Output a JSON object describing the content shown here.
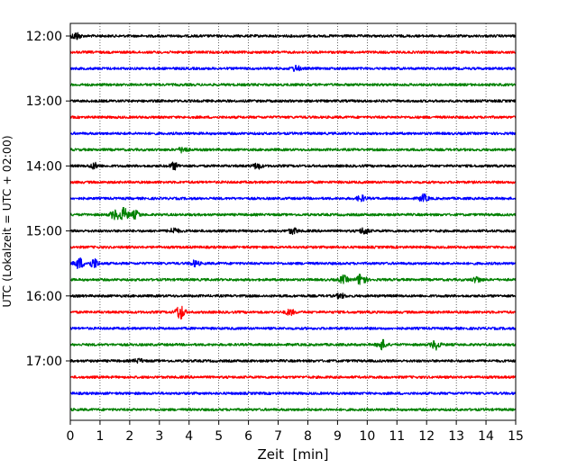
{
  "chart_data": {
    "type": "line",
    "title": "",
    "xlabel": "Zeit  [min]",
    "ylabel": "UTC (Lokalzeit = UTC + 02:00)",
    "xlim": [
      0,
      15
    ],
    "x_ticks": [
      0,
      1,
      2,
      3,
      4,
      5,
      6,
      7,
      8,
      9,
      10,
      11,
      12,
      13,
      14,
      15
    ],
    "x_tick_labels": [
      "0",
      "1",
      "2",
      "3",
      "4",
      "5",
      "6",
      "7",
      "8",
      "9",
      "10",
      "11",
      "12",
      "13",
      "14",
      "15"
    ],
    "y_tick_labels": [
      "12:00",
      "13:00",
      "14:00",
      "15:00",
      "16:00",
      "17:00"
    ],
    "y_ticks_minutes": [
      0,
      60,
      120,
      180,
      240,
      300
    ],
    "trace_interval_minutes": 15,
    "trace_count": 24,
    "trace_start_minutes": [
      0,
      15,
      30,
      45,
      60,
      75,
      90,
      105,
      120,
      135,
      150,
      165,
      180,
      195,
      210,
      225,
      240,
      255,
      270,
      285,
      300,
      315,
      330,
      345
    ],
    "color_cycle": [
      "#000000",
      "#ff0000",
      "#0000ff",
      "#008000"
    ],
    "grid": "vertical-dotted",
    "events": [
      {
        "trace": 0,
        "t": 0.2,
        "amp": 0.4
      },
      {
        "trace": 2,
        "t": 7.6,
        "amp": 0.3
      },
      {
        "trace": 7,
        "t": 3.8,
        "amp": 0.3
      },
      {
        "trace": 8,
        "t": 3.5,
        "amp": 0.35
      },
      {
        "trace": 8,
        "t": 6.3,
        "amp": 0.3
      },
      {
        "trace": 8,
        "t": 0.8,
        "amp": 0.3
      },
      {
        "trace": 10,
        "t": 9.8,
        "amp": 0.3
      },
      {
        "trace": 10,
        "t": 11.9,
        "amp": 0.4
      },
      {
        "trace": 11,
        "t": 1.8,
        "amp": 0.7
      },
      {
        "trace": 11,
        "t": 1.5,
        "amp": 0.5
      },
      {
        "trace": 11,
        "t": 2.2,
        "amp": 0.4
      },
      {
        "trace": 12,
        "t": 3.5,
        "amp": 0.3
      },
      {
        "trace": 12,
        "t": 7.5,
        "amp": 0.3
      },
      {
        "trace": 12,
        "t": 9.9,
        "amp": 0.35
      },
      {
        "trace": 14,
        "t": 0.3,
        "amp": 0.6
      },
      {
        "trace": 14,
        "t": 0.8,
        "amp": 0.5
      },
      {
        "trace": 14,
        "t": 4.2,
        "amp": 0.3
      },
      {
        "trace": 15,
        "t": 9.8,
        "amp": 0.7
      },
      {
        "trace": 15,
        "t": 9.2,
        "amp": 0.4
      },
      {
        "trace": 15,
        "t": 13.7,
        "amp": 0.3
      },
      {
        "trace": 16,
        "t": 9.1,
        "amp": 0.25
      },
      {
        "trace": 17,
        "t": 3.7,
        "amp": 0.8
      },
      {
        "trace": 17,
        "t": 7.4,
        "amp": 0.3
      },
      {
        "trace": 19,
        "t": 10.5,
        "amp": 0.5
      },
      {
        "trace": 19,
        "t": 12.3,
        "amp": 0.5
      },
      {
        "trace": 20,
        "t": 2.3,
        "amp": 0.2
      }
    ]
  }
}
